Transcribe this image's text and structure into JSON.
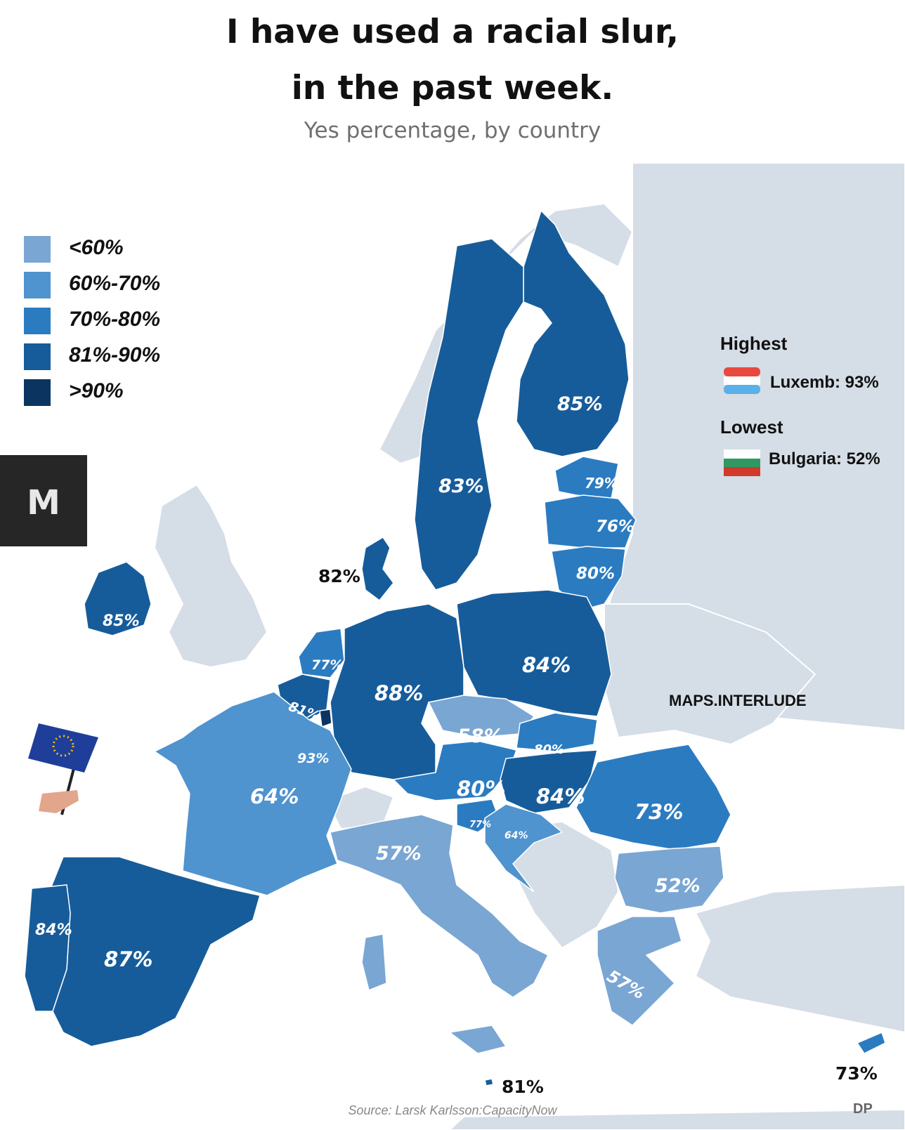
{
  "header": {
    "title_line1": "I have used a racial slur,",
    "title_line2": "in the past week.",
    "subtitle": "Yes percentage, by country"
  },
  "legend": [
    {
      "label": "<60%",
      "color": "#7aa6d3"
    },
    {
      "label": "60%-70%",
      "color": "#4f93cf"
    },
    {
      "label": "70%-80%",
      "color": "#2b7bc1"
    },
    {
      "label": "81%-90%",
      "color": "#175c9a"
    },
    {
      "label": ">90%",
      "color": "#0b3560"
    }
  ],
  "side_logo": {
    "text": "M"
  },
  "extremes": {
    "highest_heading": "Highest",
    "highest_value": "Luxemb: 93%",
    "lowest_heading": "Lowest",
    "lowest_value": "Bulgaria: 52%"
  },
  "credit": "MAPS.INTERLUDE",
  "source": "Source: Larsk Karlsson:CapacityNow",
  "corner_mark": "DP",
  "countries": [
    {
      "id": "finland",
      "label": "85%",
      "color": "#175c9a"
    },
    {
      "id": "sweden",
      "label": "83%",
      "color": "#175c9a"
    },
    {
      "id": "estonia",
      "label": "79%",
      "color": "#2b7bc1"
    },
    {
      "id": "latvia",
      "label": "76%",
      "color": "#2b7bc1"
    },
    {
      "id": "lithuania",
      "label": "80%",
      "color": "#2b7bc1"
    },
    {
      "id": "denmark",
      "label": "82%",
      "color": "#175c9a"
    },
    {
      "id": "ireland",
      "label": "85%",
      "color": "#175c9a"
    },
    {
      "id": "netherlands",
      "label": "77%",
      "color": "#2b7bc1"
    },
    {
      "id": "belgium",
      "label": "81%",
      "color": "#175c9a"
    },
    {
      "id": "luxembourg",
      "label": "93%",
      "color": "#0b3560"
    },
    {
      "id": "germany",
      "label": "88%",
      "color": "#175c9a"
    },
    {
      "id": "poland",
      "label": "84%",
      "color": "#175c9a"
    },
    {
      "id": "czechia",
      "label": "58%",
      "color": "#7aa6d3"
    },
    {
      "id": "slovakia",
      "label": "80%",
      "color": "#2b7bc1"
    },
    {
      "id": "austria",
      "label": "80%",
      "color": "#2b7bc1"
    },
    {
      "id": "hungary",
      "label": "84%",
      "color": "#175c9a"
    },
    {
      "id": "slovenia",
      "label": "77%",
      "color": "#2b7bc1"
    },
    {
      "id": "croatia",
      "label": "64%",
      "color": "#4f93cf"
    },
    {
      "id": "romania",
      "label": "73%",
      "color": "#2b7bc1"
    },
    {
      "id": "bulgaria",
      "label": "52%",
      "color": "#7aa6d3"
    },
    {
      "id": "greece",
      "label": "57%",
      "color": "#7aa6d3"
    },
    {
      "id": "france",
      "label": "64%",
      "color": "#4f93cf"
    },
    {
      "id": "italy",
      "label": "57%",
      "color": "#7aa6d3"
    },
    {
      "id": "spain",
      "label": "87%",
      "color": "#175c9a"
    },
    {
      "id": "portugal",
      "label": "84%",
      "color": "#175c9a"
    },
    {
      "id": "malta",
      "label": "81%",
      "color": "#175c9a"
    },
    {
      "id": "cyprus",
      "label": "73%",
      "color": "#2b7bc1"
    }
  ],
  "colors": {
    "background_land": "#d5dde6",
    "sea": "#ffffff",
    "flag_eu": "#1f3e9a",
    "flag_star": "#f5c400"
  }
}
